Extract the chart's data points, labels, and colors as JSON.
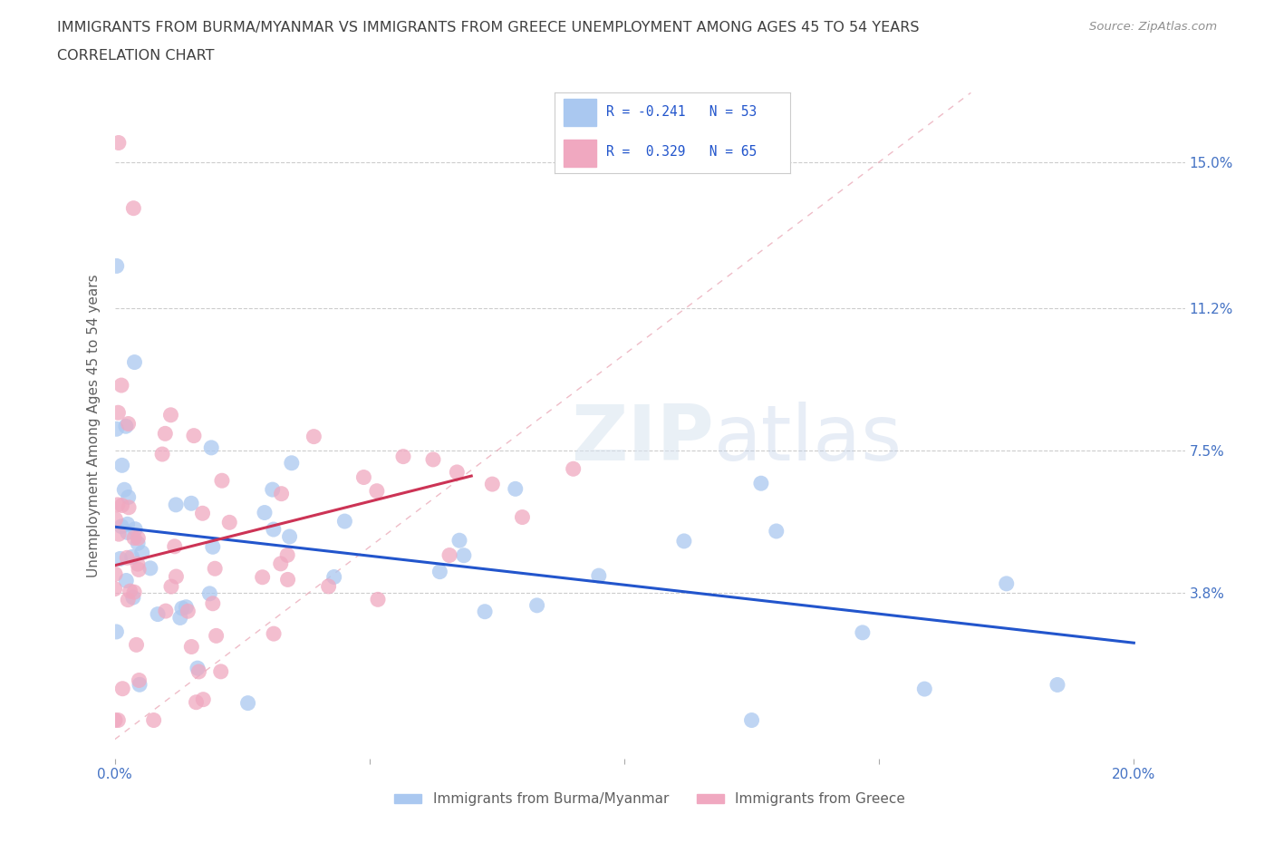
{
  "title_line1": "IMMIGRANTS FROM BURMA/MYANMAR VS IMMIGRANTS FROM GREECE UNEMPLOYMENT AMONG AGES 45 TO 54 YEARS",
  "title_line2": "CORRELATION CHART",
  "source_text": "Source: ZipAtlas.com",
  "ylabel": "Unemployment Among Ages 45 to 54 years",
  "xlim": [
    0.0,
    0.21
  ],
  "ylim": [
    -0.005,
    0.168
  ],
  "ytick_positions": [
    0.038,
    0.075,
    0.112,
    0.15
  ],
  "ytick_labels": [
    "3.8%",
    "7.5%",
    "11.2%",
    "15.0%"
  ],
  "legend_x_label": [
    "Immigrants from Burma/Myanmar",
    "Immigrants from Greece"
  ],
  "blue_color": "#aac8f0",
  "pink_color": "#f0a8c0",
  "blue_line_color": "#2255cc",
  "pink_line_color": "#cc3355",
  "diag_line_color": "#e8a0b0",
  "title_color": "#404040",
  "source_color": "#909090",
  "axis_label_color": "#606060",
  "tick_color": "#4472c4",
  "background_color": "#ffffff",
  "title_fontsize": 11.5,
  "source_fontsize": 9.5,
  "ylabel_fontsize": 11,
  "tick_fontsize": 11,
  "legend_fontsize": 11
}
